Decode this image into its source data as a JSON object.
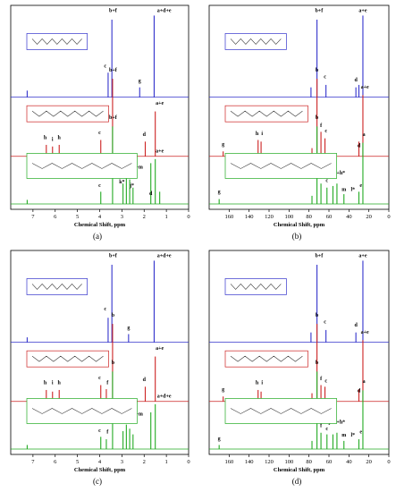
{
  "chart_data": [
    {
      "type": "line",
      "panel_label": "(a)",
      "xlabel": "Chemical Shift, ppm",
      "xlim": [
        8,
        0
      ],
      "x_ticks": [
        "7",
        "6",
        "5",
        "4",
        "3",
        "2",
        "1",
        "0"
      ],
      "x_tick_values": [
        7,
        6,
        5,
        4,
        3,
        2,
        1,
        0
      ],
      "series": [
        {
          "color": "#3333cc",
          "peaks": [
            [
              3.45,
              0.95
            ],
            [
              3.62,
              0.3
            ],
            [
              2.2,
              0.12
            ],
            [
              1.55,
              1.0
            ],
            [
              7.26,
              0.08
            ]
          ],
          "labels": [
            {
              "t": "b+f",
              "x": 3.4,
              "y": 1.03
            },
            {
              "t": "c",
              "x": 3.75,
              "y": 0.35
            },
            {
              "t": "g",
              "x": 2.2,
              "y": 0.17
            },
            {
              "t": "a+d+e",
              "x": 1.1,
              "y": 1.03
            }
          ]
        },
        {
          "color": "#cc2222",
          "peaks": [
            [
              3.42,
              0.95
            ],
            [
              3.95,
              0.2
            ],
            [
              6.4,
              0.14
            ],
            [
              6.12,
              0.12
            ],
            [
              5.82,
              0.14
            ],
            [
              1.95,
              0.18
            ],
            [
              1.5,
              0.55
            ]
          ],
          "labels": [
            {
              "t": "b+f",
              "x": 3.4,
              "y": 1.03
            },
            {
              "t": "c",
              "x": 4.0,
              "y": 0.26
            },
            {
              "t": "h",
              "x": 6.45,
              "y": 0.2
            },
            {
              "t": "i",
              "x": 6.12,
              "y": 0.18
            },
            {
              "t": "h",
              "x": 5.82,
              "y": 0.2
            },
            {
              "t": "d",
              "x": 2.0,
              "y": 0.24
            },
            {
              "t": "a+e",
              "x": 1.3,
              "y": 0.62
            }
          ]
        },
        {
          "color": "#22aa22",
          "peaks": [
            [
              3.42,
              0.95
            ],
            [
              3.95,
              0.15
            ],
            [
              2.95,
              0.25
            ],
            [
              2.8,
              0.35
            ],
            [
              2.65,
              0.3
            ],
            [
              2.5,
              0.2
            ],
            [
              1.7,
              0.5
            ],
            [
              1.5,
              0.55
            ],
            [
              1.3,
              0.15
            ],
            [
              7.26,
              0.05
            ]
          ],
          "labels": [
            {
              "t": "b+f",
              "x": 3.4,
              "y": 1.03
            },
            {
              "t": "c",
              "x": 4.0,
              "y": 0.2
            },
            {
              "t": "j+k+m",
              "x": 2.4,
              "y": 0.42
            },
            {
              "t": "h*",
              "x": 2.85,
              "y": 0.32
            },
            {
              "t": "k*",
              "x": 3.0,
              "y": 0.24
            },
            {
              "t": "j*",
              "x": 2.55,
              "y": 0.2
            },
            {
              "t": "a+e",
              "x": 1.3,
              "y": 0.62
            },
            {
              "t": "d",
              "x": 1.7,
              "y": 0.1
            }
          ]
        }
      ]
    },
    {
      "type": "line",
      "panel_label": "(b)",
      "xlabel": "Chemical Shift, ppm",
      "xlim": [
        180,
        0
      ],
      "x_ticks": [
        "160",
        "140",
        "120",
        "100",
        "80",
        "60",
        "40",
        "20",
        "0"
      ],
      "x_tick_values": [
        160,
        140,
        120,
        100,
        80,
        60,
        40,
        20,
        0
      ],
      "series": [
        {
          "color": "#3333cc",
          "peaks": [
            [
              72,
              0.95
            ],
            [
              78,
              0.12
            ],
            [
              63,
              0.15
            ],
            [
              33,
              0.12
            ],
            [
              26,
              1.0
            ],
            [
              30,
              0.15
            ]
          ],
          "labels": [
            {
              "t": "b+f",
              "x": 70,
              "y": 1.03
            },
            {
              "t": "c",
              "x": 64,
              "y": 0.22
            },
            {
              "t": "d",
              "x": 33,
              "y": 0.18
            },
            {
              "t": "a+e",
              "x": 26,
              "y": 1.03
            }
          ]
        },
        {
          "color": "#cc2222",
          "peaks": [
            [
              72,
              0.95
            ],
            [
              77,
              0.1
            ],
            [
              68,
              0.3
            ],
            [
              64,
              0.22
            ],
            [
              128,
              0.18
            ],
            [
              131,
              0.2
            ],
            [
              166,
              0.06
            ],
            [
              30,
              0.18
            ],
            [
              26,
              0.75
            ]
          ],
          "labels": [
            {
              "t": "b",
              "x": 72,
              "y": 1.03
            },
            {
              "t": "f",
              "x": 68,
              "y": 0.35
            },
            {
              "t": "c",
              "x": 63,
              "y": 0.28
            },
            {
              "t": "g",
              "x": 166,
              "y": 0.12
            },
            {
              "t": "h",
              "x": 132,
              "y": 0.25
            },
            {
              "t": "i",
              "x": 127,
              "y": 0.25
            },
            {
              "t": "a+e",
              "x": 24,
              "y": 0.82
            },
            {
              "t": "d",
              "x": 30,
              "y": 0.1
            }
          ]
        },
        {
          "color": "#22aa22",
          "peaks": [
            [
              72,
              0.95
            ],
            [
              77,
              0.1
            ],
            [
              68,
              0.25
            ],
            [
              62,
              0.2
            ],
            [
              56,
              0.22
            ],
            [
              52,
              0.25
            ],
            [
              45,
              0.12
            ],
            [
              30,
              0.15
            ],
            [
              26,
              0.75
            ],
            [
              170,
              0.06
            ]
          ],
          "labels": [
            {
              "t": "b",
              "x": 72,
              "y": 1.03
            },
            {
              "t": "g",
              "x": 170,
              "y": 0.12
            },
            {
              "t": "f",
              "x": 68,
              "y": 0.3
            },
            {
              "t": "c",
              "x": 62,
              "y": 0.26
            },
            {
              "t": "j+k+h*",
              "x": 52,
              "y": 0.35
            },
            {
              "t": "m",
              "x": 45,
              "y": 0.15
            },
            {
              "t": "l*",
              "x": 36,
              "y": 0.15
            },
            {
              "t": "a",
              "x": 25,
              "y": 0.82
            },
            {
              "t": "e",
              "x": 28,
              "y": 0.2
            }
          ]
        }
      ]
    },
    {
      "type": "line",
      "panel_label": "(c)",
      "xlabel": "Chemical Shift, ppm",
      "xlim": [
        8,
        0
      ],
      "x_ticks": [
        "7",
        "6",
        "5",
        "4",
        "3",
        "2",
        "1",
        "0"
      ],
      "x_tick_values": [
        7,
        6,
        5,
        4,
        3,
        2,
        1,
        0
      ],
      "series": [
        {
          "color": "#3333cc",
          "peaks": [
            [
              3.45,
              0.95
            ],
            [
              3.62,
              0.3
            ],
            [
              2.7,
              0.1
            ],
            [
              1.55,
              1.0
            ],
            [
              7.26,
              0.06
            ]
          ],
          "labels": [
            {
              "t": "b+f",
              "x": 3.4,
              "y": 1.03
            },
            {
              "t": "c",
              "x": 3.75,
              "y": 0.38
            },
            {
              "t": "g",
              "x": 2.7,
              "y": 0.15
            },
            {
              "t": "a+d+e",
              "x": 1.1,
              "y": 1.03
            }
          ]
        },
        {
          "color": "#cc2222",
          "peaks": [
            [
              3.42,
              0.95
            ],
            [
              3.95,
              0.2
            ],
            [
              3.7,
              0.15
            ],
            [
              6.4,
              0.14
            ],
            [
              6.12,
              0.12
            ],
            [
              5.82,
              0.14
            ],
            [
              1.95,
              0.18
            ],
            [
              1.5,
              0.55
            ]
          ],
          "labels": [
            {
              "t": "b",
              "x": 3.4,
              "y": 1.03
            },
            {
              "t": "c",
              "x": 4.0,
              "y": 0.26
            },
            {
              "t": "f",
              "x": 3.65,
              "y": 0.2
            },
            {
              "t": "h",
              "x": 6.45,
              "y": 0.2
            },
            {
              "t": "i",
              "x": 6.12,
              "y": 0.2
            },
            {
              "t": "h",
              "x": 5.82,
              "y": 0.2
            },
            {
              "t": "d",
              "x": 2.0,
              "y": 0.24
            },
            {
              "t": "a+e",
              "x": 1.3,
              "y": 0.62
            }
          ]
        },
        {
          "color": "#22aa22",
          "peaks": [
            [
              3.42,
              0.95
            ],
            [
              3.95,
              0.15
            ],
            [
              3.7,
              0.12
            ],
            [
              2.95,
              0.22
            ],
            [
              2.8,
              0.3
            ],
            [
              2.65,
              0.25
            ],
            [
              2.5,
              0.18
            ],
            [
              1.7,
              0.45
            ],
            [
              1.5,
              0.55
            ],
            [
              7.26,
              0.05
            ]
          ],
          "labels": [
            {
              "t": "b",
              "x": 3.4,
              "y": 1.03
            },
            {
              "t": "c",
              "x": 4.0,
              "y": 0.2
            },
            {
              "t": "f",
              "x": 3.65,
              "y": 0.18
            },
            {
              "t": "j+k+m",
              "x": 2.4,
              "y": 0.4
            },
            {
              "t": "a+d+e",
              "x": 1.1,
              "y": 0.62
            }
          ]
        }
      ]
    },
    {
      "type": "line",
      "panel_label": "(d)",
      "xlabel": "Chemical Shift, ppm",
      "xlim": [
        180,
        0
      ],
      "x_ticks": [
        "160",
        "140",
        "120",
        "100",
        "80",
        "60",
        "40",
        "20",
        "0"
      ],
      "x_tick_values": [
        160,
        140,
        120,
        100,
        80,
        60,
        40,
        20,
        0
      ],
      "series": [
        {
          "color": "#3333cc",
          "peaks": [
            [
              72,
              0.95
            ],
            [
              78,
              0.12
            ],
            [
              63,
              0.15
            ],
            [
              33,
              0.12
            ],
            [
              26,
              1.0
            ]
          ],
          "labels": [
            {
              "t": "b+f",
              "x": 70,
              "y": 1.03
            },
            {
              "t": "c",
              "x": 64,
              "y": 0.22
            },
            {
              "t": "d",
              "x": 33,
              "y": 0.18
            },
            {
              "t": "a+e",
              "x": 26,
              "y": 1.03
            }
          ]
        },
        {
          "color": "#cc2222",
          "peaks": [
            [
              72,
              0.95
            ],
            [
              77,
              0.1
            ],
            [
              68,
              0.2
            ],
            [
              64,
              0.18
            ],
            [
              128,
              0.12
            ],
            [
              131,
              0.14
            ],
            [
              166,
              0.06
            ],
            [
              30,
              0.15
            ],
            [
              26,
              0.75
            ]
          ],
          "labels": [
            {
              "t": "b",
              "x": 72,
              "y": 1.03
            },
            {
              "t": "f",
              "x": 68,
              "y": 0.25
            },
            {
              "t": "c",
              "x": 63,
              "y": 0.22
            },
            {
              "t": "g",
              "x": 166,
              "y": 0.12
            },
            {
              "t": "h",
              "x": 132,
              "y": 0.2
            },
            {
              "t": "i",
              "x": 127,
              "y": 0.2
            },
            {
              "t": "a+e",
              "x": 24,
              "y": 0.82
            },
            {
              "t": "d",
              "x": 30,
              "y": 0.1
            }
          ]
        },
        {
          "color": "#22aa22",
          "peaks": [
            [
              72,
              0.95
            ],
            [
              77,
              0.1
            ],
            [
              68,
              0.2
            ],
            [
              62,
              0.18
            ],
            [
              56,
              0.18
            ],
            [
              52,
              0.2
            ],
            [
              45,
              0.1
            ],
            [
              30,
              0.12
            ],
            [
              26,
              0.72
            ],
            [
              170,
              0.05
            ]
          ],
          "labels": [
            {
              "t": "b",
              "x": 72,
              "y": 1.03
            },
            {
              "t": "g",
              "x": 170,
              "y": 0.1
            },
            {
              "t": "f",
              "x": 68,
              "y": 0.26
            },
            {
              "t": "c",
              "x": 62,
              "y": 0.22
            },
            {
              "t": "j+k+h*",
              "x": 52,
              "y": 0.3
            },
            {
              "t": "m",
              "x": 45,
              "y": 0.14
            },
            {
              "t": "l*",
              "x": 36,
              "y": 0.14
            },
            {
              "t": "a",
              "x": 25,
              "y": 0.8
            },
            {
              "t": "e",
              "x": 28,
              "y": 0.18
            }
          ]
        }
      ]
    }
  ]
}
